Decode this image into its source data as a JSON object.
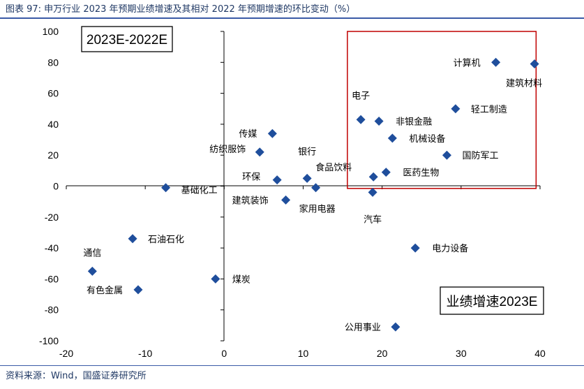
{
  "figure_title": "图表 97:  申万行业 2023 年预期业绩增速及其相对 2022 年预期增速的环比变动（%）",
  "source_note": "资料来源：Wind，国盛证券研究所",
  "colors": {
    "marker": "#1f4e9c",
    "highlight_box": "#c00000",
    "title": "#1f3864"
  },
  "chart_data": {
    "type": "scatter",
    "title": "申万行业 2023 年预期业绩增速及其相对 2022 年预期增速的环比变动（%）",
    "xlabel": "业绩增速2023E",
    "ylabel": "2023E-2022E",
    "xlim": [
      -20,
      40
    ],
    "ylim": [
      -100,
      100
    ],
    "xticks": [
      -20,
      -10,
      0,
      10,
      20,
      30,
      40
    ],
    "yticks": [
      100,
      80,
      60,
      40,
      20,
      0,
      -20,
      -40,
      -60,
      -80,
      -100
    ],
    "grid": false,
    "highlight_region": {
      "x": [
        15.6,
        39.5
      ],
      "y": [
        -1.5,
        100
      ]
    },
    "points": [
      {
        "name": "计算机",
        "x": 34.4,
        "y": 80
      },
      {
        "name": "建筑材料",
        "x": 39.3,
        "y": 79
      },
      {
        "name": "轻工制造",
        "x": 29.3,
        "y": 50
      },
      {
        "name": "电子",
        "x": 17.3,
        "y": 43
      },
      {
        "name": "非银金融",
        "x": 19.6,
        "y": 42
      },
      {
        "name": "机械设备",
        "x": 21.3,
        "y": 31
      },
      {
        "name": "国防军工",
        "x": 28.2,
        "y": 20
      },
      {
        "name": "医药生物",
        "x": 20.5,
        "y": 9
      },
      {
        "name": "食品饮料",
        "x": 18.9,
        "y": 6
      },
      {
        "name": "汽车",
        "x": 18.8,
        "y": -4
      },
      {
        "name": "传媒",
        "x": 6.1,
        "y": 34
      },
      {
        "name": "纺织服饰",
        "x": 4.5,
        "y": 22
      },
      {
        "name": "银行",
        "x": 10.5,
        "y": 5
      },
      {
        "name": "环保",
        "x": 6.7,
        "y": 4
      },
      {
        "name": "家用电器",
        "x": 11.6,
        "y": -1
      },
      {
        "name": "建筑装饰",
        "x": 7.8,
        "y": -9
      },
      {
        "name": "基础化工",
        "x": -7.4,
        "y": -1
      },
      {
        "name": "石油石化",
        "x": -11.6,
        "y": -34
      },
      {
        "name": "通信",
        "x": -16.7,
        "y": -55
      },
      {
        "name": "有色金属",
        "x": -10.9,
        "y": -67
      },
      {
        "name": "煤炭",
        "x": -1.1,
        "y": -60
      },
      {
        "name": "电力设备",
        "x": 24.2,
        "y": -40
      },
      {
        "name": "公用事业",
        "x": 21.7,
        "y": -91
      }
    ]
  }
}
